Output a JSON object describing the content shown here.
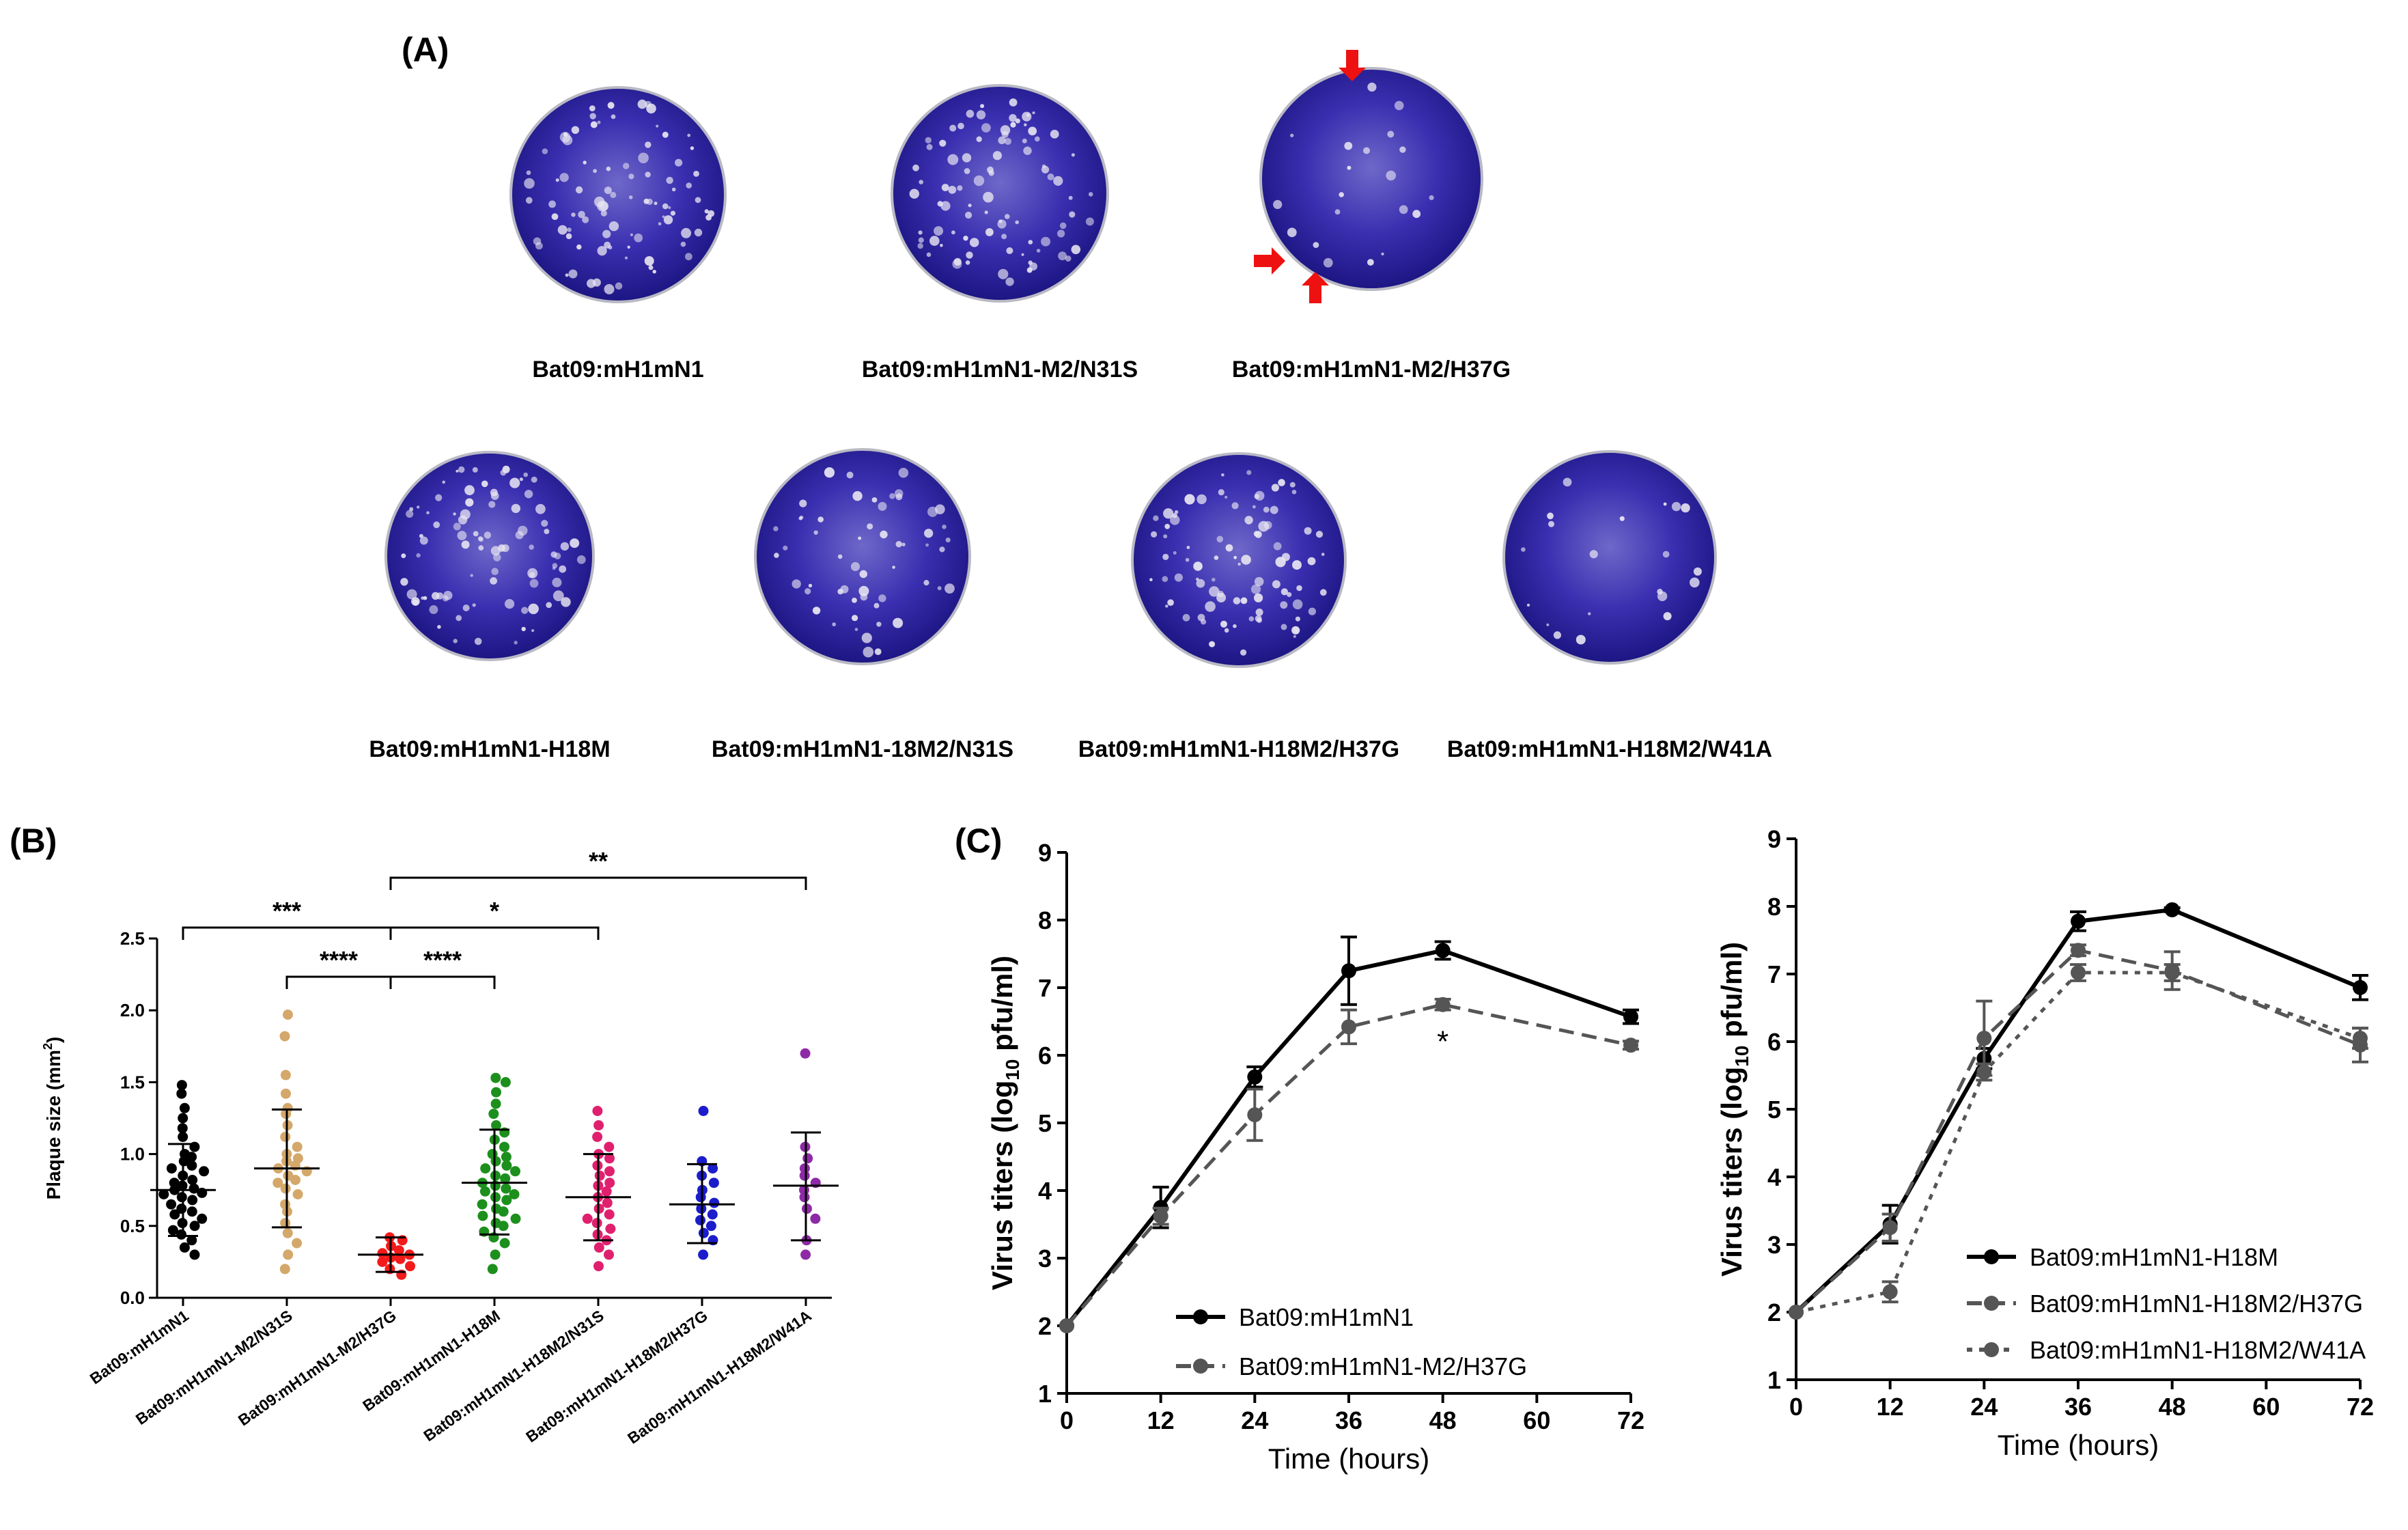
{
  "panel_a": {
    "label": "(A)",
    "plates_row1": [
      {
        "name": "Bat09:mH1mN1",
        "plaques": "many"
      },
      {
        "name": "Bat09:mH1mN1-M2/N31S",
        "plaques": "many"
      },
      {
        "name": "Bat09:mH1mN1-M2/H37G",
        "plaques": "few",
        "arrows": 3
      }
    ],
    "plates_row2": [
      {
        "name": "Bat09:mH1mN1-H18M",
        "plaques": "many"
      },
      {
        "name": "Bat09:mH1mN1-18M2/N31S",
        "plaques": "moderate"
      },
      {
        "name": "Bat09:mH1mN1-H18M2/H37G",
        "plaques": "many"
      },
      {
        "name": "Bat09:mH1mN1-H18M2/W41A",
        "plaques": "few"
      }
    ],
    "colors": {
      "plate": "#3a2fb0",
      "plate_dark": "#1d1684",
      "plate_light": "#7f78cf",
      "plaque": "#e8e6f2",
      "arrow": "#ee1111"
    }
  },
  "chart_data": [
    {
      "panel": "(B)",
      "type": "scatter",
      "ylabel": "Plaque size (mm",
      "ylabel_sup": "2",
      "ylabel_end": ")",
      "ylim": [
        0,
        2.5
      ],
      "yticks": [
        "0.0",
        "0.5",
        "1.0",
        "1.5",
        "2.0",
        "2.5"
      ],
      "groups": [
        {
          "name": "Bat09:mH1mN1",
          "color": "#000000",
          "mean": 0.75,
          "sd_low": 0.43,
          "sd_high": 1.07,
          "points": [
            1.48,
            1.42,
            1.32,
            1.25,
            1.18,
            1.12,
            1.05,
            1.0,
            0.98,
            0.95,
            0.92,
            0.9,
            0.88,
            0.85,
            0.82,
            0.8,
            0.78,
            0.76,
            0.75,
            0.73,
            0.72,
            0.7,
            0.68,
            0.65,
            0.62,
            0.6,
            0.58,
            0.55,
            0.52,
            0.5,
            0.47,
            0.44,
            0.4,
            0.35,
            0.3
          ]
        },
        {
          "name": "Bat09:mH1mN1-M2/N31S",
          "color": "#d4a86a",
          "mean": 0.9,
          "sd_low": 0.49,
          "sd_high": 1.31,
          "points": [
            1.97,
            1.82,
            1.55,
            1.42,
            1.32,
            1.28,
            1.2,
            1.12,
            1.05,
            1.0,
            0.97,
            0.95,
            0.92,
            0.9,
            0.88,
            0.85,
            0.82,
            0.8,
            0.76,
            0.72,
            0.65,
            0.6,
            0.52,
            0.45,
            0.38,
            0.3,
            0.2
          ]
        },
        {
          "name": "Bat09:mH1mN1-M2/H37G",
          "color": "#f21a1a",
          "mean": 0.3,
          "sd_low": 0.18,
          "sd_high": 0.42,
          "points": [
            0.42,
            0.4,
            0.36,
            0.33,
            0.31,
            0.3,
            0.28,
            0.27,
            0.25,
            0.22,
            0.2,
            0.16
          ]
        },
        {
          "name": "Bat09:mH1mN1-H18M",
          "color": "#1d8f1d",
          "mean": 0.8,
          "sd_low": 0.44,
          "sd_high": 1.17,
          "points": [
            1.53,
            1.5,
            1.43,
            1.35,
            1.28,
            1.2,
            1.15,
            1.1,
            1.05,
            1.0,
            0.98,
            0.95,
            0.92,
            0.9,
            0.88,
            0.85,
            0.83,
            0.8,
            0.78,
            0.76,
            0.74,
            0.72,
            0.7,
            0.68,
            0.65,
            0.62,
            0.6,
            0.57,
            0.55,
            0.52,
            0.5,
            0.46,
            0.42,
            0.38,
            0.3,
            0.2
          ]
        },
        {
          "name": "Bat09:mH1mN1-H18M2/N31S",
          "color": "#e0206e",
          "mean": 0.7,
          "sd_low": 0.4,
          "sd_high": 1.0,
          "points": [
            1.3,
            1.2,
            1.12,
            1.05,
            1.0,
            0.97,
            0.92,
            0.88,
            0.85,
            0.8,
            0.78,
            0.74,
            0.7,
            0.66,
            0.62,
            0.58,
            0.55,
            0.52,
            0.48,
            0.44,
            0.4,
            0.35,
            0.3,
            0.22
          ]
        },
        {
          "name": "Bat09:mH1mN1-H18M2/H37G",
          "color": "#1c1ccc",
          "mean": 0.65,
          "sd_low": 0.38,
          "sd_high": 0.93,
          "points": [
            1.3,
            0.95,
            0.9,
            0.85,
            0.8,
            0.75,
            0.7,
            0.66,
            0.62,
            0.58,
            0.54,
            0.5,
            0.45,
            0.4,
            0.3
          ]
        },
        {
          "name": "Bat09:mH1mN1-H18M2/W41A",
          "color": "#8e2aa6",
          "mean": 0.78,
          "sd_low": 0.4,
          "sd_high": 1.15,
          "points": [
            1.7,
            1.05,
            0.97,
            0.9,
            0.85,
            0.8,
            0.75,
            0.7,
            0.62,
            0.55,
            0.4,
            0.3
          ]
        }
      ],
      "comparisons": [
        {
          "from": 0,
          "to": 2,
          "label": "***"
        },
        {
          "from": 1,
          "to": 2,
          "label": "****"
        },
        {
          "from": 2,
          "to": 3,
          "label": "****"
        },
        {
          "from": 2,
          "to": 4,
          "label": "*"
        },
        {
          "from": 2,
          "to": 6,
          "label": "**"
        }
      ]
    },
    {
      "panel": "(C)",
      "type": "line",
      "xlabel": "Time (hours)",
      "ylabel_pre": "Virus titers (log",
      "ylabel_sub": "10",
      "ylabel_post": " pfu/ml)",
      "xlim": [
        0,
        72
      ],
      "ylim": [
        1,
        9
      ],
      "xticks": [
        0,
        12,
        24,
        36,
        48,
        60,
        72
      ],
      "yticks": [
        1,
        2,
        3,
        4,
        5,
        6,
        7,
        8,
        9
      ],
      "annotation": {
        "text": "*",
        "x": 48,
        "y": 6.3
      },
      "series": [
        {
          "name": "Bat09:mH1mN1",
          "color": "#000000",
          "dash": "solid",
          "x": [
            0,
            12,
            24,
            36,
            48,
            72
          ],
          "y": [
            2.0,
            3.75,
            5.68,
            7.25,
            7.55,
            6.57
          ],
          "err": [
            0,
            0.3,
            0.15,
            0.5,
            0.13,
            0.1
          ]
        },
        {
          "name": "Bat09:mH1mN1-M2/H37G",
          "color": "#555555",
          "dash": "dashed",
          "x": [
            0,
            12,
            24,
            36,
            48,
            72
          ],
          "y": [
            2.0,
            3.62,
            5.12,
            6.42,
            6.75,
            6.15
          ],
          "err": [
            0,
            0.12,
            0.38,
            0.25,
            0.08,
            0.06
          ]
        }
      ]
    },
    {
      "panel": "",
      "type": "line",
      "xlabel": "Time (hours)",
      "ylabel_pre": "Virus titers (log",
      "ylabel_sub": "10",
      "ylabel_post": " pfu/ml)",
      "xlim": [
        0,
        72
      ],
      "ylim": [
        1,
        9
      ],
      "xticks": [
        0,
        12,
        24,
        36,
        48,
        60,
        72
      ],
      "yticks": [
        1,
        2,
        3,
        4,
        5,
        6,
        7,
        8,
        9
      ],
      "series": [
        {
          "name": "Bat09:mH1mN1-H18M",
          "color": "#000000",
          "dash": "solid",
          "x": [
            0,
            12,
            24,
            36,
            48,
            72
          ],
          "y": [
            2.0,
            3.3,
            5.75,
            7.78,
            7.95,
            6.8
          ],
          "err": [
            0,
            0.28,
            0.15,
            0.14,
            0.03,
            0.18
          ]
        },
        {
          "name": "Bat09:mH1mN1-H18M2/H37G",
          "color": "#555555",
          "dash": "dashed",
          "x": [
            0,
            12,
            24,
            36,
            48,
            72
          ],
          "y": [
            2.0,
            3.25,
            6.05,
            7.35,
            7.05,
            5.95
          ],
          "err": [
            0,
            0.2,
            0.55,
            0.08,
            0.28,
            0.25
          ]
        },
        {
          "name": "Bat09:mH1mN1-H18M2/W41A",
          "color": "#555555",
          "dash": "dotted",
          "x": [
            0,
            12,
            24,
            36,
            48,
            72
          ],
          "y": [
            2.0,
            2.3,
            5.55,
            7.02,
            7.02,
            6.05
          ],
          "err": [
            0,
            0.15,
            0.12,
            0.12,
            0.12,
            0.15
          ]
        }
      ]
    }
  ]
}
